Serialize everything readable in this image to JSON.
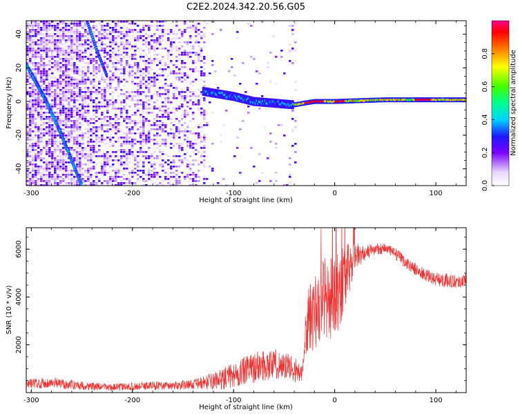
{
  "figure_title": "C2E2.2024.342.20.56.G05",
  "colors": {
    "spectrogram_weak": "#e0d0ff",
    "spectrogram_mid": "#7030f0",
    "track_core": "#ff2020",
    "snr_line": "#ee3030"
  },
  "chart_data": [
    {
      "type": "heatmap",
      "title": "",
      "xlabel": "Height of straight line (km)",
      "ylabel": "Frequency (Hz)",
      "xlim": [
        -305,
        130
      ],
      "ylim": [
        -50,
        48
      ],
      "xticks": [
        -300,
        -200,
        -100,
        0,
        100
      ],
      "xtick_labels": [
        "-300",
        "-200",
        "-100",
        "0",
        "100"
      ],
      "yticks": [
        -40,
        -20,
        0,
        20,
        40
      ],
      "ytick_labels": [
        "-40",
        "-20",
        "0",
        "20",
        "40"
      ],
      "grid": false,
      "colorbar": {
        "label": "Normalized spectral amplitude",
        "range": [
          0,
          1
        ],
        "ticks": [
          0,
          0.2,
          0.4,
          0.6,
          0.8
        ],
        "tick_labels": [
          "0.0",
          "0.2",
          "0.4",
          "0.6",
          "0.8"
        ],
        "colormap": "rainbow (white-purple-blue-cyan-green-yellow-red-magenta)"
      },
      "features": [
        {
          "name": "",
          "kind": "direct-signal track",
          "points": [
            [
              -305,
              22
            ],
            [
              -285,
              0
            ],
            [
              -270,
              -20
            ],
            [
              -258,
              -38
            ],
            [
              -250,
              -50
            ]
          ]
        },
        {
          "name": "",
          "kind": "secondary track",
          "points": [
            [
              -245,
              48
            ],
            [
              -235,
              30
            ],
            [
              -225,
              15
            ]
          ]
        },
        {
          "name": "",
          "kind": "reflection track",
          "points": [
            [
              -130,
              6
            ],
            [
              -100,
              3
            ],
            [
              -80,
              0
            ],
            [
              -60,
              -1
            ],
            [
              -40,
              -2
            ],
            [
              -20,
              0
            ],
            [
              0,
              0
            ],
            [
              50,
              1
            ],
            [
              90,
              1
            ],
            [
              130,
              1
            ]
          ]
        }
      ]
    },
    {
      "type": "line",
      "title": "",
      "xlabel": "Height of straight line (km)",
      "ylabel": "SNR (10 * v/v)",
      "xlim": [
        -305,
        130
      ],
      "ylim": [
        0,
        6900
      ],
      "xticks": [
        -300,
        -200,
        -100,
        0,
        100
      ],
      "xtick_labels": [
        "-300",
        "-200",
        "-100",
        "0",
        "100"
      ],
      "yticks": [
        2000,
        4000,
        6000
      ],
      "ytick_labels": [
        "2000",
        "4000",
        "6000"
      ],
      "grid": false,
      "series": [
        {
          "name": "",
          "x": [
            -305,
            -280,
            -260,
            -240,
            -220,
            -200,
            -180,
            -160,
            -140,
            -120,
            -110,
            -100,
            -90,
            -80,
            -70,
            -60,
            -50,
            -40,
            -32,
            -28,
            -20,
            -10,
            0,
            10,
            20,
            30,
            40,
            50,
            60,
            70,
            80,
            90,
            100,
            110,
            120,
            130
          ],
          "y": [
            380,
            400,
            330,
            260,
            220,
            250,
            300,
            290,
            350,
            480,
            580,
            720,
            880,
            1050,
            1150,
            1200,
            1120,
            1000,
            700,
            2800,
            3400,
            4000,
            3900,
            4800,
            5700,
            5850,
            6000,
            6050,
            5800,
            5450,
            5150,
            4900,
            4750,
            4700,
            4650,
            4700
          ],
          "noise_amplitude": [
            200,
            220,
            200,
            170,
            150,
            160,
            180,
            180,
            200,
            350,
            450,
            550,
            600,
            650,
            650,
            650,
            600,
            550,
            450,
            1300,
            1600,
            1700,
            1700,
            1500,
            600,
            300,
            250,
            250,
            250,
            250,
            250,
            280,
            280,
            300,
            300,
            300
          ]
        }
      ]
    }
  ]
}
